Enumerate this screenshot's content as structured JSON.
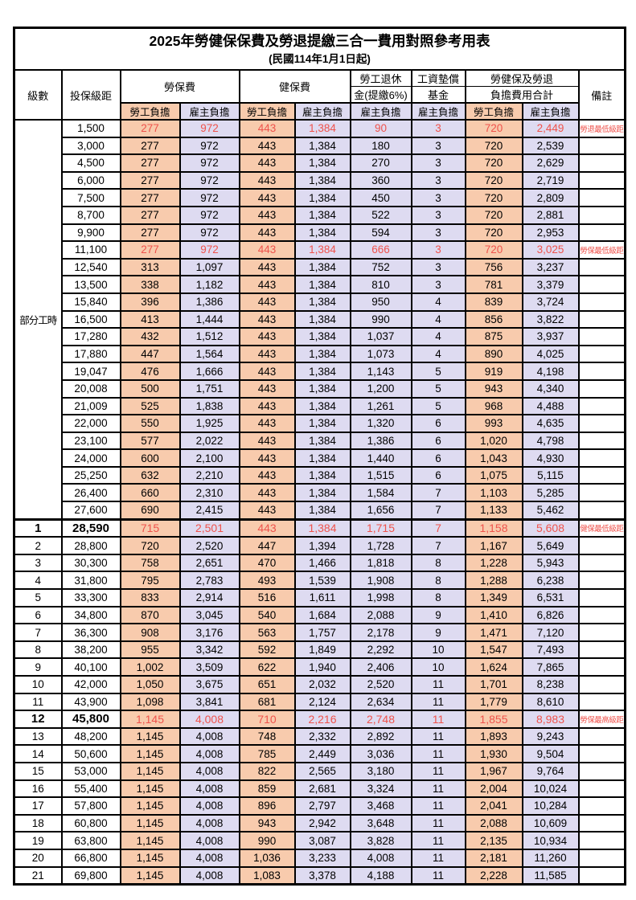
{
  "page": {
    "title": "2025年勞健保保費及勞退提繳三合一費用對照參考用表",
    "subtitle": "(民國114年1月1日起)"
  },
  "header": {
    "level": "級數",
    "salary": "投保級距",
    "labor_insurance": "勞保費",
    "health_insurance": "健保費",
    "pension_line1": "勞工退休",
    "pension_line2": "金(提繳6%)",
    "wage_fund_line1": "工資墊償",
    "wage_fund_line2": "基金",
    "total_line1": "勞健保及勞退",
    "total_line2": "負擔費用合計",
    "remark": "備註",
    "employee": "勞工負擔",
    "employer": "雇主負擔"
  },
  "group_label": "部分工時",
  "group2_start": 23,
  "colors": {
    "employee_bg": "#F8CBAD",
    "employer_bg": "#DEDBF1",
    "highlight_text": "#EF534C",
    "border": "#000000"
  },
  "rows": [
    {
      "level": "",
      "salary": "1,500",
      "cells": [
        "277",
        "972",
        "443",
        "1,384",
        "90",
        "3",
        "720",
        "2,449"
      ],
      "remark": "勞退最低級距",
      "highlight": true,
      "bold": false
    },
    {
      "level": "",
      "salary": "3,000",
      "cells": [
        "277",
        "972",
        "443",
        "1,384",
        "180",
        "3",
        "720",
        "2,539"
      ],
      "remark": "",
      "highlight": false,
      "bold": false
    },
    {
      "level": "",
      "salary": "4,500",
      "cells": [
        "277",
        "972",
        "443",
        "1,384",
        "270",
        "3",
        "720",
        "2,629"
      ],
      "remark": "",
      "highlight": false,
      "bold": false
    },
    {
      "level": "",
      "salary": "6,000",
      "cells": [
        "277",
        "972",
        "443",
        "1,384",
        "360",
        "3",
        "720",
        "2,719"
      ],
      "remark": "",
      "highlight": false,
      "bold": false
    },
    {
      "level": "",
      "salary": "7,500",
      "cells": [
        "277",
        "972",
        "443",
        "1,384",
        "450",
        "3",
        "720",
        "2,809"
      ],
      "remark": "",
      "highlight": false,
      "bold": false
    },
    {
      "level": "",
      "salary": "8,700",
      "cells": [
        "277",
        "972",
        "443",
        "1,384",
        "522",
        "3",
        "720",
        "2,881"
      ],
      "remark": "",
      "highlight": false,
      "bold": false
    },
    {
      "level": "",
      "salary": "9,900",
      "cells": [
        "277",
        "972",
        "443",
        "1,384",
        "594",
        "3",
        "720",
        "2,953"
      ],
      "remark": "",
      "highlight": false,
      "bold": false
    },
    {
      "level": "",
      "salary": "11,100",
      "cells": [
        "277",
        "972",
        "443",
        "1,384",
        "666",
        "3",
        "720",
        "3,025"
      ],
      "remark": "勞保最低級距",
      "highlight": true,
      "bold": false
    },
    {
      "level": "",
      "salary": "12,540",
      "cells": [
        "313",
        "1,097",
        "443",
        "1,384",
        "752",
        "3",
        "756",
        "3,237"
      ],
      "remark": "",
      "highlight": false,
      "bold": false
    },
    {
      "level": "",
      "salary": "13,500",
      "cells": [
        "338",
        "1,182",
        "443",
        "1,384",
        "810",
        "3",
        "781",
        "3,379"
      ],
      "remark": "",
      "highlight": false,
      "bold": false
    },
    {
      "level": "",
      "salary": "15,840",
      "cells": [
        "396",
        "1,386",
        "443",
        "1,384",
        "950",
        "4",
        "839",
        "3,724"
      ],
      "remark": "",
      "highlight": false,
      "bold": false
    },
    {
      "level": "",
      "salary": "16,500",
      "cells": [
        "413",
        "1,444",
        "443",
        "1,384",
        "990",
        "4",
        "856",
        "3,822"
      ],
      "remark": "",
      "highlight": false,
      "bold": false
    },
    {
      "level": "",
      "salary": "17,280",
      "cells": [
        "432",
        "1,512",
        "443",
        "1,384",
        "1,037",
        "4",
        "875",
        "3,937"
      ],
      "remark": "",
      "highlight": false,
      "bold": false
    },
    {
      "level": "",
      "salary": "17,880",
      "cells": [
        "447",
        "1,564",
        "443",
        "1,384",
        "1,073",
        "4",
        "890",
        "4,025"
      ],
      "remark": "",
      "highlight": false,
      "bold": false
    },
    {
      "level": "",
      "salary": "19,047",
      "cells": [
        "476",
        "1,666",
        "443",
        "1,384",
        "1,143",
        "5",
        "919",
        "4,198"
      ],
      "remark": "",
      "highlight": false,
      "bold": false
    },
    {
      "level": "",
      "salary": "20,008",
      "cells": [
        "500",
        "1,751",
        "443",
        "1,384",
        "1,200",
        "5",
        "943",
        "4,340"
      ],
      "remark": "",
      "highlight": false,
      "bold": false
    },
    {
      "level": "",
      "salary": "21,009",
      "cells": [
        "525",
        "1,838",
        "443",
        "1,384",
        "1,261",
        "5",
        "968",
        "4,488"
      ],
      "remark": "",
      "highlight": false,
      "bold": false
    },
    {
      "level": "",
      "salary": "22,000",
      "cells": [
        "550",
        "1,925",
        "443",
        "1,384",
        "1,320",
        "6",
        "993",
        "4,635"
      ],
      "remark": "",
      "highlight": false,
      "bold": false
    },
    {
      "level": "",
      "salary": "23,100",
      "cells": [
        "577",
        "2,022",
        "443",
        "1,384",
        "1,386",
        "6",
        "1,020",
        "4,798"
      ],
      "remark": "",
      "highlight": false,
      "bold": false
    },
    {
      "level": "",
      "salary": "24,000",
      "cells": [
        "600",
        "2,100",
        "443",
        "1,384",
        "1,440",
        "6",
        "1,043",
        "4,930"
      ],
      "remark": "",
      "highlight": false,
      "bold": false
    },
    {
      "level": "",
      "salary": "25,250",
      "cells": [
        "632",
        "2,210",
        "443",
        "1,384",
        "1,515",
        "6",
        "1,075",
        "5,115"
      ],
      "remark": "",
      "highlight": false,
      "bold": false
    },
    {
      "level": "",
      "salary": "26,400",
      "cells": [
        "660",
        "2,310",
        "443",
        "1,384",
        "1,584",
        "7",
        "1,103",
        "5,285"
      ],
      "remark": "",
      "highlight": false,
      "bold": false
    },
    {
      "level": "",
      "salary": "27,600",
      "cells": [
        "690",
        "2,415",
        "443",
        "1,384",
        "1,656",
        "7",
        "1,133",
        "5,462"
      ],
      "remark": "",
      "highlight": false,
      "bold": false
    },
    {
      "level": "1",
      "salary": "28,590",
      "cells": [
        "715",
        "2,501",
        "443",
        "1,384",
        "1,715",
        "7",
        "1,158",
        "5,608"
      ],
      "remark": "健保最低級距",
      "highlight": true,
      "bold": true
    },
    {
      "level": "2",
      "salary": "28,800",
      "cells": [
        "720",
        "2,520",
        "447",
        "1,394",
        "1,728",
        "7",
        "1,167",
        "5,649"
      ],
      "remark": "",
      "highlight": false,
      "bold": false
    },
    {
      "level": "3",
      "salary": "30,300",
      "cells": [
        "758",
        "2,651",
        "470",
        "1,466",
        "1,818",
        "8",
        "1,228",
        "5,943"
      ],
      "remark": "",
      "highlight": false,
      "bold": false
    },
    {
      "level": "4",
      "salary": "31,800",
      "cells": [
        "795",
        "2,783",
        "493",
        "1,539",
        "1,908",
        "8",
        "1,288",
        "6,238"
      ],
      "remark": "",
      "highlight": false,
      "bold": false
    },
    {
      "level": "5",
      "salary": "33,300",
      "cells": [
        "833",
        "2,914",
        "516",
        "1,611",
        "1,998",
        "8",
        "1,349",
        "6,531"
      ],
      "remark": "",
      "highlight": false,
      "bold": false
    },
    {
      "level": "6",
      "salary": "34,800",
      "cells": [
        "870",
        "3,045",
        "540",
        "1,684",
        "2,088",
        "9",
        "1,410",
        "6,826"
      ],
      "remark": "",
      "highlight": false,
      "bold": false
    },
    {
      "level": "7",
      "salary": "36,300",
      "cells": [
        "908",
        "3,176",
        "563",
        "1,757",
        "2,178",
        "9",
        "1,471",
        "7,120"
      ],
      "remark": "",
      "highlight": false,
      "bold": false
    },
    {
      "level": "8",
      "salary": "38,200",
      "cells": [
        "955",
        "3,342",
        "592",
        "1,849",
        "2,292",
        "10",
        "1,547",
        "7,493"
      ],
      "remark": "",
      "highlight": false,
      "bold": false
    },
    {
      "level": "9",
      "salary": "40,100",
      "cells": [
        "1,002",
        "3,509",
        "622",
        "1,940",
        "2,406",
        "10",
        "1,624",
        "7,865"
      ],
      "remark": "",
      "highlight": false,
      "bold": false
    },
    {
      "level": "10",
      "salary": "42,000",
      "cells": [
        "1,050",
        "3,675",
        "651",
        "2,032",
        "2,520",
        "11",
        "1,701",
        "8,238"
      ],
      "remark": "",
      "highlight": false,
      "bold": false
    },
    {
      "level": "11",
      "salary": "43,900",
      "cells": [
        "1,098",
        "3,841",
        "681",
        "2,124",
        "2,634",
        "11",
        "1,779",
        "8,610"
      ],
      "remark": "",
      "highlight": false,
      "bold": false
    },
    {
      "level": "12",
      "salary": "45,800",
      "cells": [
        "1,145",
        "4,008",
        "710",
        "2,216",
        "2,748",
        "11",
        "1,855",
        "8,983"
      ],
      "remark": "勞保最高級距",
      "highlight": true,
      "bold": true
    },
    {
      "level": "13",
      "salary": "48,200",
      "cells": [
        "1,145",
        "4,008",
        "748",
        "2,332",
        "2,892",
        "11",
        "1,893",
        "9,243"
      ],
      "remark": "",
      "highlight": false,
      "bold": false
    },
    {
      "level": "14",
      "salary": "50,600",
      "cells": [
        "1,145",
        "4,008",
        "785",
        "2,449",
        "3,036",
        "11",
        "1,930",
        "9,504"
      ],
      "remark": "",
      "highlight": false,
      "bold": false
    },
    {
      "level": "15",
      "salary": "53,000",
      "cells": [
        "1,145",
        "4,008",
        "822",
        "2,565",
        "3,180",
        "11",
        "1,967",
        "9,764"
      ],
      "remark": "",
      "highlight": false,
      "bold": false
    },
    {
      "level": "16",
      "salary": "55,400",
      "cells": [
        "1,145",
        "4,008",
        "859",
        "2,681",
        "3,324",
        "11",
        "2,004",
        "10,024"
      ],
      "remark": "",
      "highlight": false,
      "bold": false
    },
    {
      "level": "17",
      "salary": "57,800",
      "cells": [
        "1,145",
        "4,008",
        "896",
        "2,797",
        "3,468",
        "11",
        "2,041",
        "10,284"
      ],
      "remark": "",
      "highlight": false,
      "bold": false
    },
    {
      "level": "18",
      "salary": "60,800",
      "cells": [
        "1,145",
        "4,008",
        "943",
        "2,942",
        "3,648",
        "11",
        "2,088",
        "10,609"
      ],
      "remark": "",
      "highlight": false,
      "bold": false
    },
    {
      "level": "19",
      "salary": "63,800",
      "cells": [
        "1,145",
        "4,008",
        "990",
        "3,087",
        "3,828",
        "11",
        "2,135",
        "10,934"
      ],
      "remark": "",
      "highlight": false,
      "bold": false
    },
    {
      "level": "20",
      "salary": "66,800",
      "cells": [
        "1,145",
        "4,008",
        "1,036",
        "3,233",
        "4,008",
        "11",
        "2,181",
        "11,260"
      ],
      "remark": "",
      "highlight": false,
      "bold": false
    },
    {
      "level": "21",
      "salary": "69,800",
      "cells": [
        "1,145",
        "4,008",
        "1,083",
        "3,378",
        "4,188",
        "11",
        "2,228",
        "11,585"
      ],
      "remark": "",
      "highlight": false,
      "bold": false
    }
  ]
}
